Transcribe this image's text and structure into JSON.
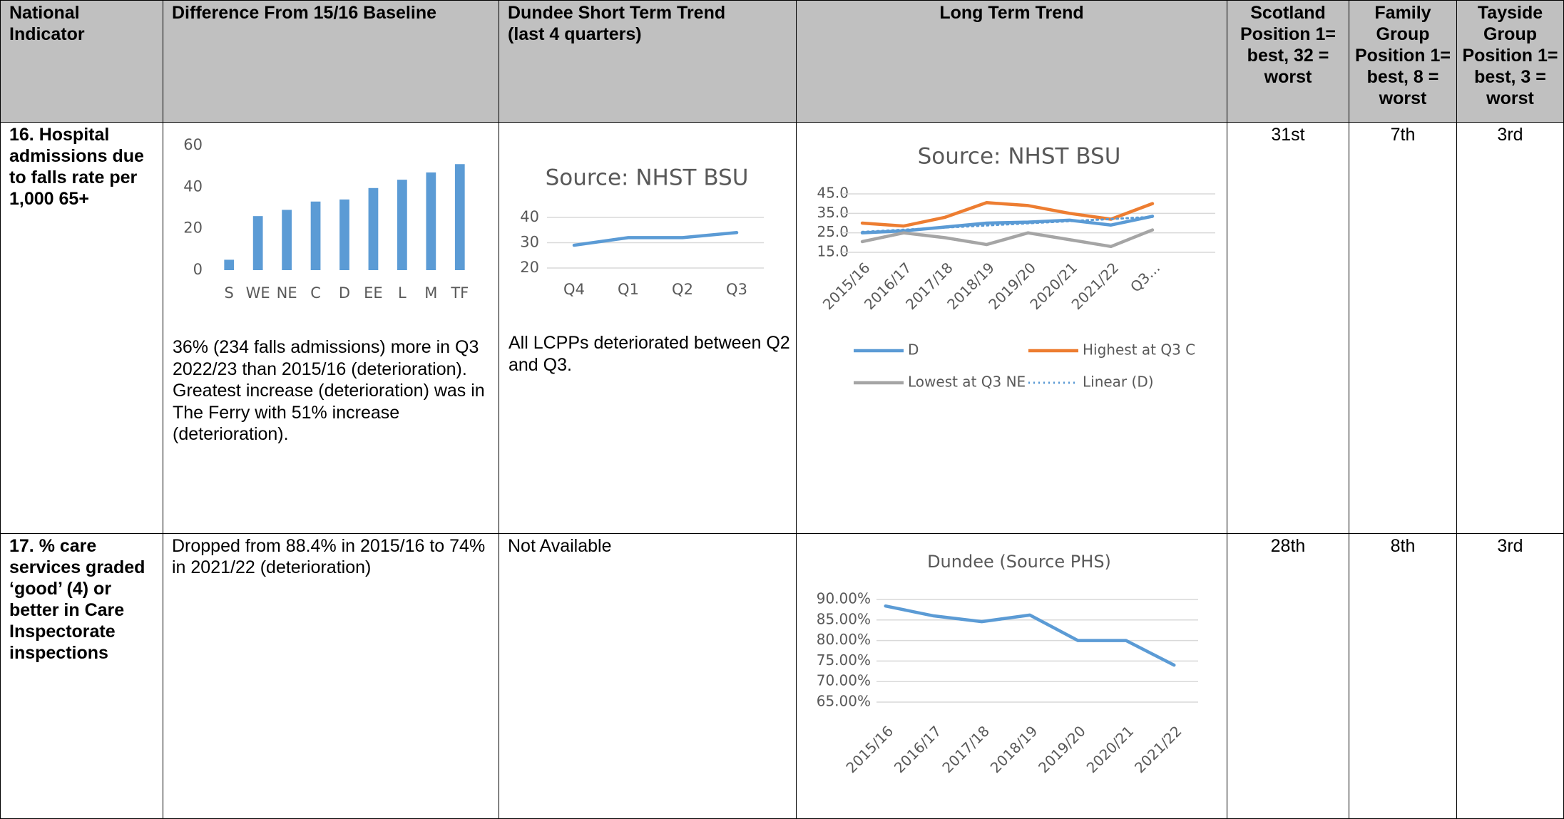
{
  "table": {
    "headers": [
      "National Indicator",
      "Difference From 15/16 Baseline",
      "Dundee Short Term Trend (last 4 quarters)",
      "Long Term Trend",
      "Scotland Position 1= best, 32 = worst",
      "Family Group Position 1= best, 8 = worst",
      "Tayside Group Position 1= best, 3 = worst"
    ],
    "rows": [
      {
        "indicator": "16. Hospital admissions due to falls rate per 1,000 65+",
        "baseline_chart": {
          "type": "bar",
          "categories": [
            "S",
            "WE",
            "NE",
            "C",
            "D",
            "EE",
            "L",
            "M",
            "TF"
          ],
          "values": [
            5,
            26,
            29,
            33,
            34,
            39.5,
            43.5,
            47,
            51
          ],
          "color": "#5b9bd5",
          "ylim": [
            0,
            60
          ],
          "yticks": [
            0,
            20,
            40,
            60
          ],
          "grid": false
        },
        "baseline": "36% (234 falls admissions) more in Q3 2022/23 than 2015/16 (deterioration).  Greatest increase (deterioration) was in The Ferry with 51% increase (deterioration).",
        "short_term_chart": {
          "type": "line",
          "title": "Source: NHST BSU",
          "categories": [
            "Q4",
            "Q1",
            "Q2",
            "Q3"
          ],
          "series": [
            {
              "color": "#5b9bd5",
              "values": [
                29,
                32,
                32,
                34
              ]
            }
          ],
          "ylim": [
            20,
            40
          ],
          "yticks": [
            20,
            30,
            40
          ],
          "grid": true
        },
        "short_term": "All LCPPs deteriorated between Q2 and Q3.",
        "long_term_chart": {
          "type": "line",
          "title": "Source: NHST BSU",
          "categories": [
            "2015/16",
            "2016/17",
            "2017/18",
            "2018/19",
            "2019/20",
            "2020/21",
            "2021/22",
            "Q3…"
          ],
          "series": [
            {
              "name": "D",
              "color": "#5b9bd5",
              "values": [
                25,
                26,
                28,
                30,
                30.5,
                31.5,
                29,
                33.5
              ]
            },
            {
              "name": "Highest at Q3 C",
              "color": "#ed7d31",
              "values": [
                30,
                28.5,
                33,
                40.5,
                39,
                35,
                32,
                40
              ]
            },
            {
              "name": "Lowest at Q3 NE",
              "color": "#a5a5a5",
              "values": [
                20.5,
                25,
                22.5,
                19,
                25,
                21.5,
                18,
                26.5
              ]
            },
            {
              "name": "Linear (D)",
              "color": "#5b9bd5",
              "dash": "dotted",
              "values": [
                25.5,
                26.6,
                27.7,
                28.8,
                29.9,
                31,
                32.1,
                33.2
              ]
            }
          ],
          "ylim": [
            15,
            45
          ],
          "yticks": [
            {
              "value": 15,
              "label": "15.0"
            },
            {
              "value": 25,
              "label": "25.0"
            },
            {
              "value": 35,
              "label": "35.0"
            },
            {
              "value": 45,
              "label": "45.0"
            }
          ],
          "grid": true,
          "legend": "bottom"
        },
        "scotland": "31st",
        "family": "7th",
        "tayside": "3rd"
      },
      {
        "indicator": "17. % care services graded ‘good’ (4) or better in Care Inspectorate inspections",
        "baseline": "Dropped from 88.4% in 2015/16 to 74% in 2021/22 (deterioration)",
        "short_term": "Not Available",
        "long_term_chart": {
          "type": "line",
          "title": "Dundee (Source PHS)",
          "categories": [
            "2015/16",
            "2016/17",
            "2017/18",
            "2018/19",
            "2019/20",
            "2020/21",
            "2021/22"
          ],
          "series": [
            {
              "color": "#5b9bd5",
              "values": [
                88.4,
                86,
                84.6,
                86.2,
                80,
                80,
                74
              ]
            }
          ],
          "ylim": [
            65,
            90
          ],
          "yticks": [
            {
              "value": 65,
              "label": "65.00%"
            },
            {
              "value": 70,
              "label": "70.00%"
            },
            {
              "value": 75,
              "label": "75.00%"
            },
            {
              "value": 80,
              "label": "80.00%"
            },
            {
              "value": 85,
              "label": "85.00%"
            },
            {
              "value": 90,
              "label": "90.00%"
            }
          ],
          "grid": true
        },
        "scotland": "28th",
        "family": "8th",
        "tayside": "3rd"
      }
    ]
  }
}
